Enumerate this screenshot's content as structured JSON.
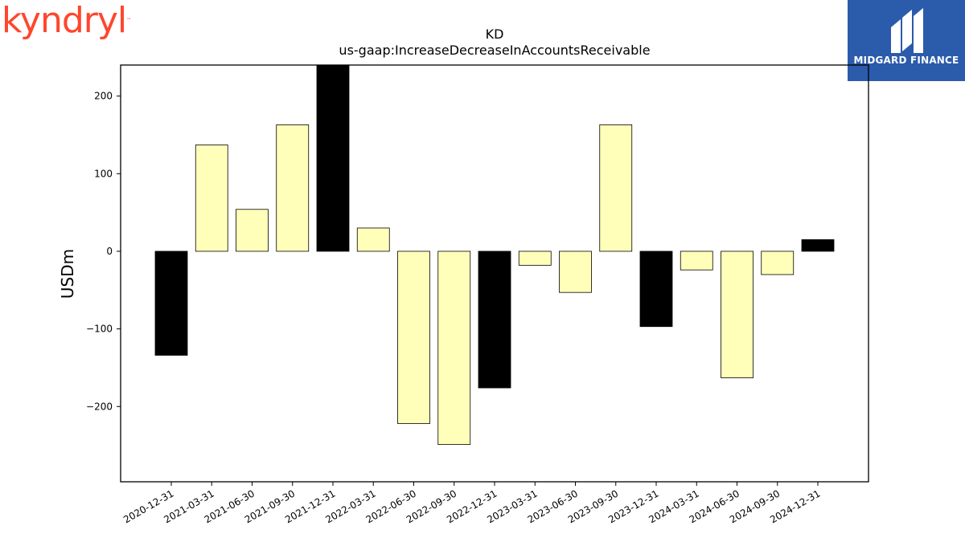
{
  "logos": {
    "kyndryl": "kyndryl",
    "kyndryl_tm": "™",
    "midgard": "MIDGARD FINANCE"
  },
  "chart_data": {
    "type": "bar",
    "title": "KD",
    "subtitle": "us-gaap:IncreaseDecreaseInAccountsReceivable",
    "xlabel": "",
    "ylabel": "USDm",
    "ylim": [
      -297,
      240
    ],
    "yticks": [
      -200,
      -100,
      0,
      100,
      200
    ],
    "grid": false,
    "legend": "none",
    "categories": [
      "2020-12-31",
      "2021-03-31",
      "2021-06-30",
      "2021-09-30",
      "2021-12-31",
      "2022-03-31",
      "2022-06-30",
      "2022-09-30",
      "2022-12-31",
      "2023-03-31",
      "2023-06-30",
      "2023-09-30",
      "2023-12-31",
      "2024-03-31",
      "2024-06-30",
      "2024-09-30",
      "2024-12-31"
    ],
    "values": [
      -134,
      137,
      54,
      163,
      240,
      30,
      -222,
      -249,
      -176,
      -18,
      -53,
      163,
      -97,
      -24,
      -163,
      -30,
      15
    ],
    "colors": [
      "#000000",
      "#ffffb9",
      "#ffffb9",
      "#ffffb9",
      "#000000",
      "#ffffb9",
      "#ffffb9",
      "#ffffb9",
      "#000000",
      "#ffffb9",
      "#ffffb9",
      "#ffffb9",
      "#000000",
      "#ffffb9",
      "#ffffb9",
      "#ffffb9",
      "#000000"
    ]
  }
}
